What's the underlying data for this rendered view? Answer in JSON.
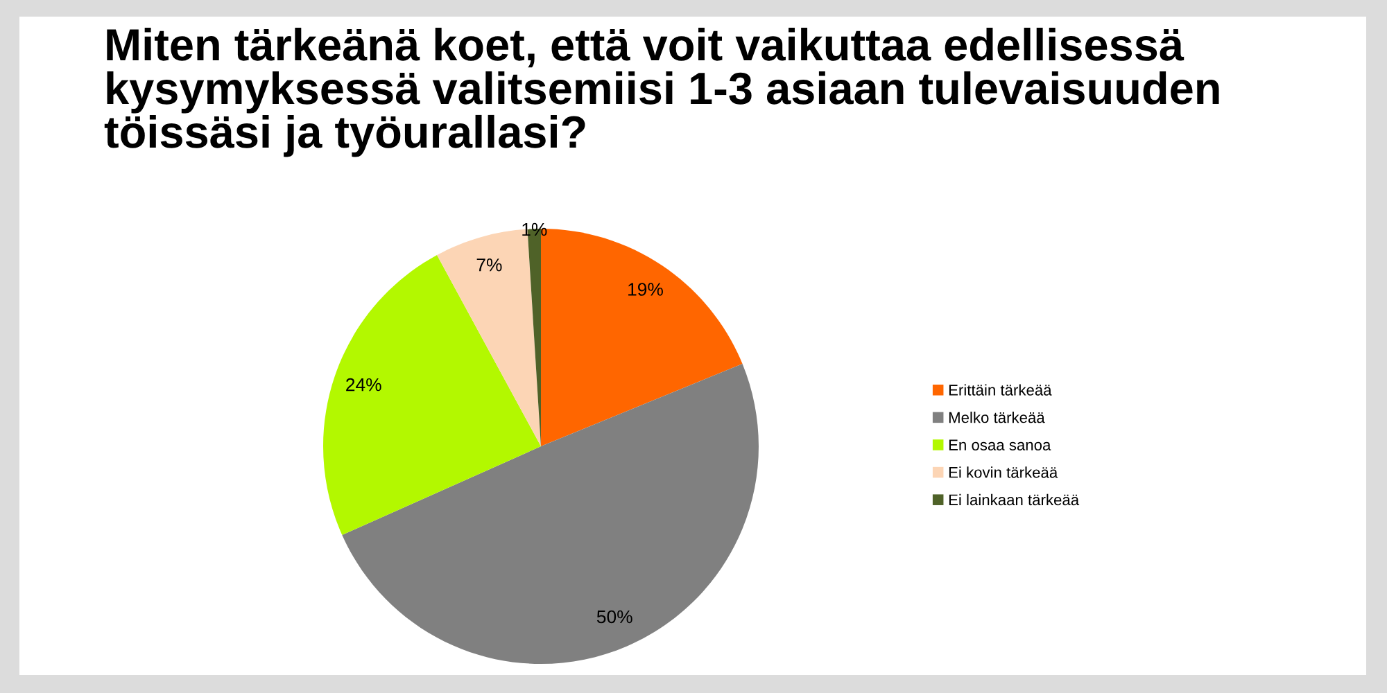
{
  "chart_data": {
    "type": "pie",
    "title": "Miten tärkeänä koet, että voit vaikuttaa edellisessä kysymyksessä valitsemiisi 1-3 asiaan tulevaisuuden töissäsi ja työurallasi?",
    "categories": [
      "Erittäin tärkeää",
      "Melko tärkeää",
      "En osaa sanoa",
      "Ei kovin tärkeää",
      "Ei lainkaan tärkeää"
    ],
    "values": [
      19,
      50,
      24,
      7,
      1
    ],
    "colors": [
      "#ff6600",
      "#808080",
      "#b3f800",
      "#fcd5b5",
      "#4f6228"
    ],
    "value_labels": [
      "19%",
      "50%",
      "24%",
      "7%",
      "1%"
    ],
    "legend": "right"
  }
}
